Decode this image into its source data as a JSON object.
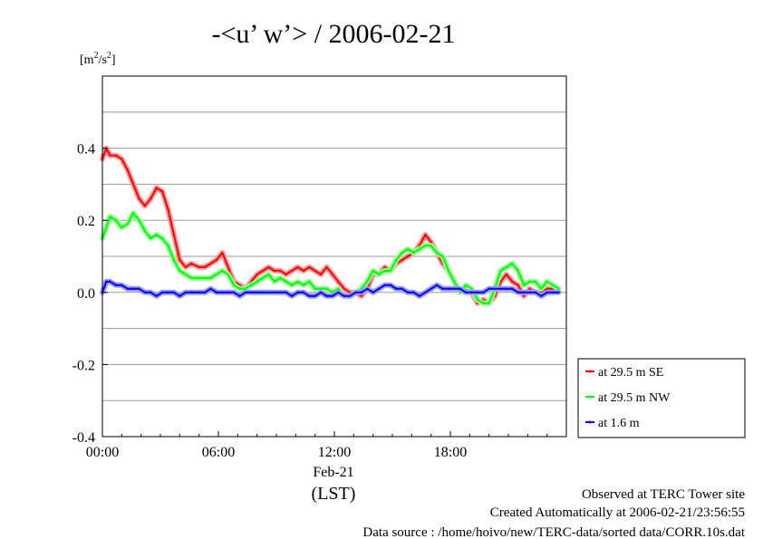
{
  "chart_data": {
    "type": "line",
    "title": "-<u’ w’> / 2006-02-21",
    "ylabel_unit": "m",
    "ylabel_exp": "2",
    "ylabel_mid": "/s",
    "ylabel_exp2": "2",
    "ylim": [
      -0.4,
      0.6
    ],
    "xlim": [
      0,
      24
    ],
    "y_ticks": [
      {
        "v": -0.4,
        "label": "-0.4"
      },
      {
        "v": -0.2,
        "label": "-0.2"
      },
      {
        "v": 0.0,
        "label": "0.0"
      },
      {
        "v": 0.2,
        "label": "0.2"
      },
      {
        "v": 0.4,
        "label": "0.4"
      }
    ],
    "x_ticks": [
      {
        "v": 0,
        "label": "00:00"
      },
      {
        "v": 6,
        "label": "06:00"
      },
      {
        "v": 12,
        "label": "12:00"
      },
      {
        "v": 18,
        "label": "18:00"
      }
    ],
    "x_date_label": "Feb-21",
    "x_tz_label": "(LST)",
    "grid": true,
    "legend_position": "right",
    "series": [
      {
        "name": "at 29.5 m SE",
        "color": "#ff0000",
        "band": "#ff9a9a",
        "x": [
          0,
          0.2,
          0.4,
          0.7,
          1.0,
          1.3,
          1.6,
          1.9,
          2.2,
          2.5,
          2.8,
          3.1,
          3.4,
          3.7,
          4.0,
          4.3,
          4.6,
          5.0,
          5.3,
          5.6,
          5.9,
          6.2,
          6.5,
          6.8,
          7.1,
          7.4,
          7.7,
          8.0,
          8.3,
          8.6,
          8.9,
          9.2,
          9.5,
          9.8,
          10.1,
          10.4,
          10.7,
          11.0,
          11.3,
          11.6,
          11.9,
          12.2,
          12.5,
          12.8,
          13.1,
          13.4,
          13.7,
          14.0,
          14.3,
          14.6,
          14.9,
          15.2,
          15.5,
          15.8,
          16.1,
          16.4,
          16.7,
          17.0,
          17.3,
          17.6,
          17.9,
          18.2,
          18.5,
          18.8,
          19.1,
          19.4,
          19.7,
          20.0,
          20.3,
          20.6,
          20.9,
          21.2,
          21.5,
          21.8,
          22.1,
          22.4,
          22.7,
          23.0,
          23.3,
          23.6
        ],
        "y": [
          0.37,
          0.4,
          0.38,
          0.38,
          0.37,
          0.34,
          0.3,
          0.26,
          0.24,
          0.26,
          0.29,
          0.28,
          0.23,
          0.16,
          0.09,
          0.07,
          0.08,
          0.07,
          0.07,
          0.08,
          0.09,
          0.11,
          0.07,
          0.03,
          0.02,
          0.01,
          0.03,
          0.05,
          0.06,
          0.07,
          0.06,
          0.06,
          0.05,
          0.06,
          0.07,
          0.06,
          0.07,
          0.06,
          0.05,
          0.07,
          0.05,
          0.03,
          0.01,
          0.0,
          0.0,
          -0.01,
          0.01,
          0.05,
          0.05,
          0.07,
          0.06,
          0.08,
          0.09,
          0.1,
          0.11,
          0.13,
          0.16,
          0.14,
          0.11,
          0.08,
          0.06,
          0.03,
          0.0,
          0.01,
          0.0,
          -0.03,
          -0.02,
          -0.03,
          -0.01,
          0.03,
          0.05,
          0.03,
          0.02,
          -0.01,
          0.01,
          0.0,
          0.0,
          0.01,
          0.01,
          0.01
        ]
      },
      {
        "name": "at 29.5 m NW",
        "color": "#00ff00",
        "band": "#9aff9a",
        "x": [
          0,
          0.2,
          0.4,
          0.7,
          1.0,
          1.3,
          1.6,
          1.9,
          2.2,
          2.5,
          2.8,
          3.1,
          3.4,
          3.7,
          4.0,
          4.3,
          4.6,
          5.0,
          5.3,
          5.6,
          5.9,
          6.2,
          6.5,
          6.8,
          7.1,
          7.4,
          7.7,
          8.0,
          8.3,
          8.6,
          8.9,
          9.2,
          9.5,
          9.8,
          10.1,
          10.4,
          10.7,
          11.0,
          11.3,
          11.6,
          11.9,
          12.2,
          12.5,
          12.8,
          13.1,
          13.4,
          13.7,
          14.0,
          14.3,
          14.6,
          14.9,
          15.2,
          15.5,
          15.8,
          16.1,
          16.4,
          16.7,
          17.0,
          17.3,
          17.6,
          17.9,
          18.2,
          18.5,
          18.8,
          19.1,
          19.4,
          19.7,
          20.0,
          20.3,
          20.6,
          20.9,
          21.2,
          21.5,
          21.8,
          22.1,
          22.4,
          22.7,
          23.0,
          23.3,
          23.6
        ],
        "y": [
          0.15,
          0.18,
          0.21,
          0.2,
          0.18,
          0.19,
          0.22,
          0.2,
          0.17,
          0.15,
          0.16,
          0.15,
          0.13,
          0.09,
          0.06,
          0.05,
          0.04,
          0.04,
          0.04,
          0.04,
          0.05,
          0.06,
          0.05,
          0.02,
          0.01,
          0.01,
          0.02,
          0.03,
          0.04,
          0.05,
          0.03,
          0.04,
          0.03,
          0.02,
          0.03,
          0.02,
          0.03,
          0.01,
          0.01,
          0.01,
          0.0,
          0.01,
          -0.01,
          -0.01,
          0.0,
          0.01,
          0.03,
          0.06,
          0.05,
          0.06,
          0.06,
          0.09,
          0.11,
          0.12,
          0.11,
          0.12,
          0.13,
          0.13,
          0.11,
          0.1,
          0.06,
          0.03,
          0.0,
          0.02,
          0.01,
          -0.02,
          -0.03,
          -0.03,
          0.01,
          0.06,
          0.07,
          0.08,
          0.06,
          0.02,
          0.03,
          0.03,
          0.01,
          0.03,
          0.02,
          0.01
        ]
      },
      {
        "name": "at 1.6 m",
        "color": "#0000ff",
        "band": "#9a9aff",
        "x": [
          0,
          0.2,
          0.4,
          0.7,
          1.0,
          1.3,
          1.6,
          1.9,
          2.2,
          2.5,
          2.8,
          3.1,
          3.4,
          3.7,
          4.0,
          4.3,
          4.6,
          5.0,
          5.3,
          5.6,
          5.9,
          6.2,
          6.5,
          6.8,
          7.1,
          7.4,
          7.7,
          8.0,
          8.3,
          8.6,
          8.9,
          9.2,
          9.5,
          9.8,
          10.1,
          10.4,
          10.7,
          11.0,
          11.3,
          11.6,
          11.9,
          12.2,
          12.5,
          12.8,
          13.1,
          13.4,
          13.7,
          14.0,
          14.3,
          14.6,
          14.9,
          15.2,
          15.5,
          15.8,
          16.1,
          16.4,
          16.7,
          17.0,
          17.3,
          17.6,
          17.9,
          18.2,
          18.5,
          18.8,
          19.1,
          19.4,
          19.7,
          20.0,
          20.3,
          20.6,
          20.9,
          21.2,
          21.5,
          21.8,
          22.1,
          22.4,
          22.7,
          23.0,
          23.3,
          23.6
        ],
        "y": [
          0.0,
          0.03,
          0.03,
          0.02,
          0.02,
          0.01,
          0.01,
          0.01,
          0.0,
          0.0,
          -0.01,
          0.0,
          0.0,
          0.0,
          -0.01,
          0.0,
          0.0,
          0.0,
          0.0,
          0.01,
          0.0,
          0.0,
          0.0,
          0.0,
          -0.01,
          0.0,
          0.0,
          0.0,
          0.0,
          0.0,
          0.0,
          0.0,
          0.0,
          -0.01,
          0.0,
          0.0,
          -0.01,
          -0.01,
          0.0,
          -0.01,
          -0.01,
          0.0,
          -0.01,
          -0.01,
          0.0,
          0.0,
          0.01,
          0.0,
          0.01,
          0.02,
          0.02,
          0.01,
          0.01,
          0.0,
          0.0,
          -0.01,
          0.0,
          0.01,
          0.02,
          0.01,
          0.01,
          0.01,
          0.01,
          0.0,
          0.0,
          0.0,
          0.0,
          0.01,
          0.01,
          0.01,
          0.01,
          0.01,
          0.0,
          0.0,
          0.0,
          0.0,
          -0.01,
          0.0,
          0.0,
          0.0
        ]
      }
    ]
  },
  "footer": {
    "line1": "Observed at TERC Tower site",
    "line2": "Created Automatically at 2006-02-21/23:56:55",
    "line3": "Data source : /home/hoivo/new/TERC-data/sorted  data/CORR.10s.dat"
  }
}
